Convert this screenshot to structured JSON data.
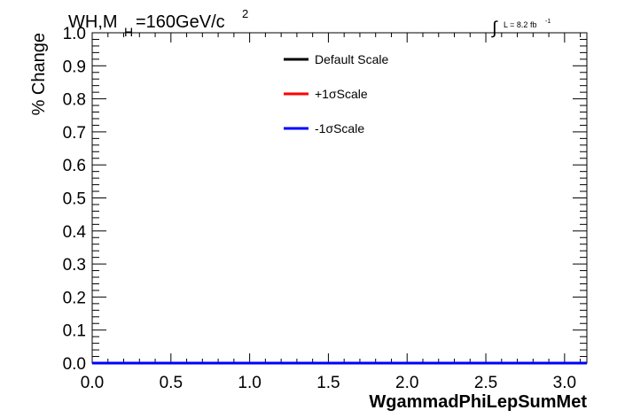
{
  "title": {
    "main": "WH,M",
    "sub": "H",
    "rest": "=160GeV/c",
    "sup": "2"
  },
  "lumi": {
    "symbol": "∫",
    "text": "L = 8.2 fb",
    "sup": "-1"
  },
  "chart_data": {
    "type": "line",
    "xlabel": "WgammadPhiLepSumMet",
    "ylabel": "% Change",
    "xlim": [
      0,
      3.1416
    ],
    "ylim": [
      0,
      1.0
    ],
    "x_ticks": [
      "0.0",
      "0.5",
      "1.0",
      "1.5",
      "2.0",
      "2.5",
      "3.0"
    ],
    "x_tick_values": [
      0,
      0.5,
      1.0,
      1.5,
      2.0,
      2.5,
      3.0
    ],
    "y_ticks": [
      "0.0",
      "0.1",
      "0.2",
      "0.3",
      "0.4",
      "0.5",
      "0.6",
      "0.7",
      "0.8",
      "0.9",
      "1.0"
    ],
    "y_tick_values": [
      0,
      0.1,
      0.2,
      0.3,
      0.4,
      0.5,
      0.6,
      0.7,
      0.8,
      0.9,
      1.0
    ],
    "grid": false,
    "legend_position": "top-center",
    "series": [
      {
        "name": "Default Scale",
        "color": "#000000",
        "x": [
          0,
          3.1416
        ],
        "y": [
          0,
          0
        ]
      },
      {
        "name": "+1σScale",
        "color": "#ff0000",
        "x": [
          0,
          3.1416
        ],
        "y": [
          0,
          0
        ]
      },
      {
        "name": "-1σScale",
        "color": "#0000ff",
        "x": [
          0,
          3.1416
        ],
        "y": [
          0,
          0
        ]
      }
    ]
  }
}
